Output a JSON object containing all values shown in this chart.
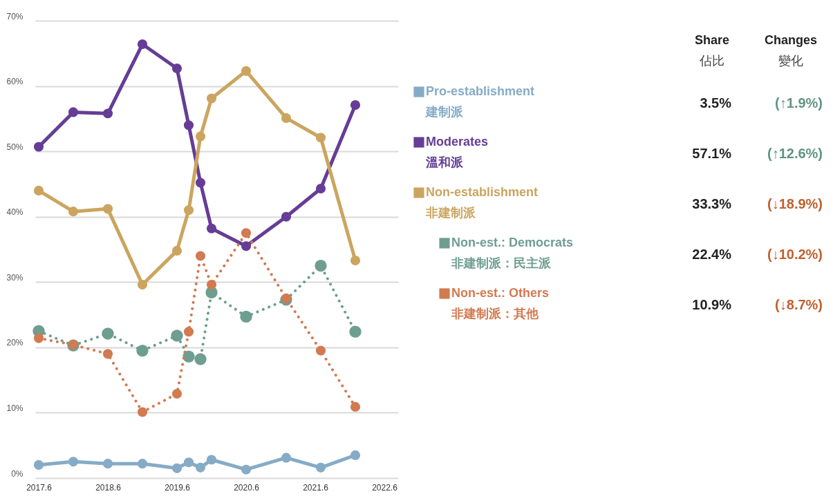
{
  "chart_data": {
    "type": "line",
    "x": [
      2017.6,
      2018.1,
      2018.6,
      2019.1,
      2019.6,
      2019.77,
      2019.94,
      2020.1,
      2020.6,
      2021.18,
      2021.68,
      2022.18
    ],
    "xlim": [
      2017.55,
      2022.8
    ],
    "xticks": [
      2017.6,
      2018.6,
      2019.6,
      2020.6,
      2021.6,
      2022.6
    ],
    "ylim": [
      0,
      70
    ],
    "yticks": [
      {
        "value": 0,
        "label": "0%"
      },
      {
        "value": 10,
        "label": "10%"
      },
      {
        "value": 20,
        "label": "20%"
      },
      {
        "value": 30,
        "label": "30%"
      },
      {
        "value": 40,
        "label": "40%"
      },
      {
        "value": 50,
        "label": "50%"
      },
      {
        "value": 60,
        "label": "60%"
      },
      {
        "value": 70,
        "label": "70%"
      }
    ],
    "grid": "y",
    "legend": "right",
    "marker": "circle",
    "series": [
      {
        "name": "Pro-establishment\n建制派",
        "color": "#86abc6",
        "line_style": "solid",
        "values": [
          2.0,
          2.5,
          2.2,
          2.2,
          1.5,
          2.4,
          1.6,
          2.8,
          1.3,
          3.1,
          1.6,
          3.5
        ]
      },
      {
        "name": "Moderates\n溫和派",
        "color": "#653d96",
        "line_style": "solid",
        "values": [
          50.7,
          56.0,
          55.8,
          66.4,
          62.7,
          54.0,
          45.2,
          38.2,
          35.5,
          40.0,
          44.3,
          57.1
        ]
      },
      {
        "name": "Non-establishment\n非建制派",
        "color": "#cba55f",
        "line_style": "solid",
        "values": [
          44.0,
          40.8,
          41.2,
          29.6,
          34.8,
          41.0,
          52.3,
          58.1,
          62.3,
          55.1,
          52.1,
          33.3
        ]
      },
      {
        "name": "Non-est.: Democrats\n非建制派：民主派",
        "color": "#6e9e90",
        "line_style": "dotted",
        "values": [
          22.5,
          20.3,
          22.1,
          19.5,
          21.8,
          18.6,
          18.2,
          28.4,
          24.7,
          27.3,
          32.5,
          22.4
        ]
      },
      {
        "name": "Non-est.: Others\n非建制派：其他",
        "color": "#d27a50",
        "line_style": "dotted",
        "values": [
          21.4,
          20.4,
          19.0,
          10.1,
          12.9,
          22.4,
          34.0,
          29.6,
          37.5,
          27.5,
          19.5,
          10.9
        ]
      }
    ],
    "annotations": [
      "Share",
      "佔比",
      "Changes",
      "變化",
      "3.5%",
      "(↑1.9%)",
      "57.1%",
      "(↑12.6%)",
      "33.3%",
      "(↓18.9%)",
      "22.4%",
      "(↓10.2%)",
      "10.9%",
      "(↓8.7%)"
    ]
  }
}
